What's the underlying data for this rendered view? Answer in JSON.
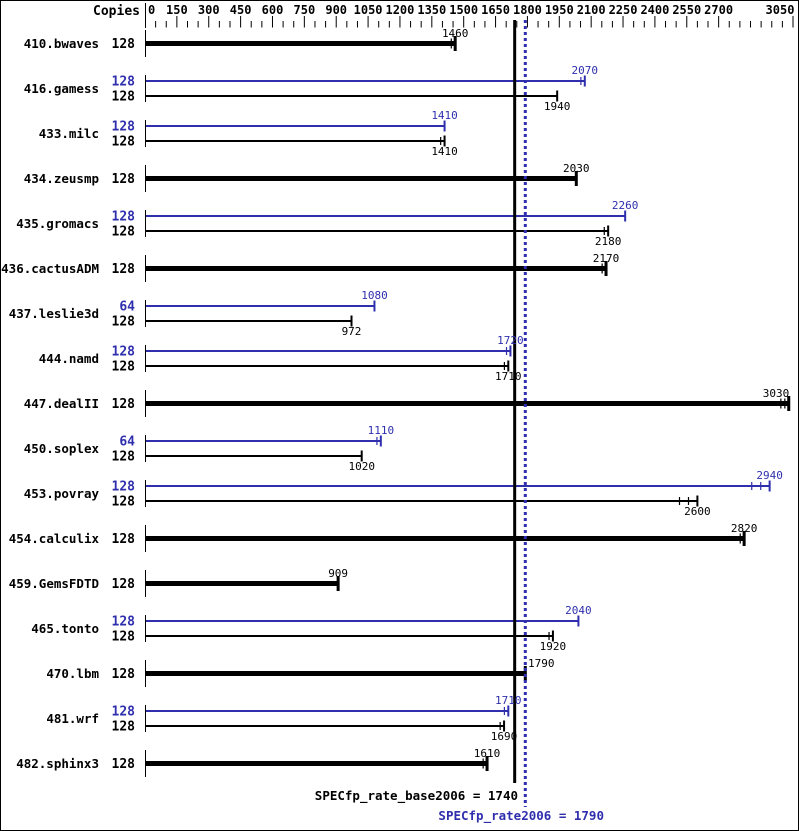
{
  "header": {
    "copies_label": "Copies"
  },
  "colors": {
    "base": "#000000",
    "peak": "#2f2fae",
    "background": "#ffffff",
    "border": "#000000"
  },
  "footer": {
    "base_text": "SPECfp_rate_base2006 = 1740",
    "peak_text": "SPECfp_rate2006 = 1790"
  },
  "chart_data": {
    "type": "bar",
    "orientation": "horizontal",
    "title": "",
    "xlabel": "",
    "ylabel": "Copies",
    "grid": false,
    "axis": {
      "min": 0,
      "max": 3050,
      "minor_step": 50,
      "major_step": 150,
      "labeled_ticks": [
        0,
        150,
        300,
        450,
        600,
        750,
        900,
        1050,
        1200,
        1350,
        1500,
        1650,
        1800,
        1950,
        2100,
        2250,
        2400,
        2550,
        2700,
        3050
      ]
    },
    "reference_lines": [
      {
        "name": "SPECfp_rate_base2006",
        "value": 1740,
        "style": "solid",
        "color_key": "base"
      },
      {
        "name": "SPECfp_rate2006",
        "value": 1790,
        "style": "dotted",
        "color_key": "peak"
      }
    ],
    "benchmarks": [
      {
        "name": "410.bwaves",
        "bars": [
          {
            "mode": "base",
            "copies": "128",
            "value": 1460,
            "runs_ticks": 1
          }
        ]
      },
      {
        "name": "416.gamess",
        "bars": [
          {
            "mode": "peak",
            "copies": "128",
            "value": 2070,
            "runs_ticks": 1
          },
          {
            "mode": "base",
            "copies": "128",
            "value": 1940,
            "runs_ticks": 0
          }
        ]
      },
      {
        "name": "433.milc",
        "bars": [
          {
            "mode": "peak",
            "copies": "128",
            "value": 1410,
            "runs_ticks": 0
          },
          {
            "mode": "base",
            "copies": "128",
            "value": 1410,
            "runs_ticks": 1
          }
        ]
      },
      {
        "name": "434.zeusmp",
        "bars": [
          {
            "mode": "base",
            "copies": "128",
            "value": 2030,
            "runs_ticks": 0
          }
        ]
      },
      {
        "name": "435.gromacs",
        "bars": [
          {
            "mode": "peak",
            "copies": "128",
            "value": 2260,
            "runs_ticks": 0
          },
          {
            "mode": "base",
            "copies": "128",
            "value": 2180,
            "runs_ticks": 1
          }
        ]
      },
      {
        "name": "436.cactusADM",
        "bars": [
          {
            "mode": "base",
            "copies": "128",
            "value": 2170,
            "runs_ticks": 1
          }
        ]
      },
      {
        "name": "437.leslie3d",
        "bars": [
          {
            "mode": "peak",
            "copies": "64",
            "value": 1080,
            "runs_ticks": 0
          },
          {
            "mode": "base",
            "copies": "128",
            "value": 972,
            "runs_ticks": 0
          }
        ]
      },
      {
        "name": "444.namd",
        "bars": [
          {
            "mode": "peak",
            "copies": "128",
            "value": 1720,
            "runs_ticks": 1
          },
          {
            "mode": "base",
            "copies": "128",
            "value": 1710,
            "runs_ticks": 1
          }
        ]
      },
      {
        "name": "447.dealII",
        "bars": [
          {
            "mode": "base",
            "copies": "128",
            "value": 3030,
            "runs_ticks": 2
          }
        ]
      },
      {
        "name": "450.soplex",
        "bars": [
          {
            "mode": "peak",
            "copies": "64",
            "value": 1110,
            "runs_ticks": 1
          },
          {
            "mode": "base",
            "copies": "128",
            "value": 1020,
            "runs_ticks": 0
          }
        ]
      },
      {
        "name": "453.povray",
        "bars": [
          {
            "mode": "peak",
            "copies": "128",
            "value": 2940,
            "runs_ticks": 2,
            "tick_spacing": 9
          },
          {
            "mode": "base",
            "copies": "128",
            "value": 2600,
            "runs_ticks": 2,
            "tick_spacing": 9
          }
        ]
      },
      {
        "name": "454.calculix",
        "bars": [
          {
            "mode": "base",
            "copies": "128",
            "value": 2820,
            "runs_ticks": 1
          }
        ]
      },
      {
        "name": "459.GemsFDTD",
        "bars": [
          {
            "mode": "base",
            "copies": "128",
            "value": 909,
            "runs_ticks": 0
          }
        ]
      },
      {
        "name": "465.tonto",
        "bars": [
          {
            "mode": "peak",
            "copies": "128",
            "value": 2040,
            "runs_ticks": 0
          },
          {
            "mode": "base",
            "copies": "128",
            "value": 1920,
            "runs_ticks": 1
          }
        ]
      },
      {
        "name": "470.lbm",
        "bars": [
          {
            "mode": "base",
            "copies": "128",
            "value": 1790,
            "runs_ticks": 0,
            "label_dx": 16
          }
        ]
      },
      {
        "name": "481.wrf",
        "bars": [
          {
            "mode": "peak",
            "copies": "128",
            "value": 1710,
            "runs_ticks": 1
          },
          {
            "mode": "base",
            "copies": "128",
            "value": 1690,
            "runs_ticks": 1
          }
        ]
      },
      {
        "name": "482.sphinx3",
        "bars": [
          {
            "mode": "base",
            "copies": "128",
            "value": 1610,
            "runs_ticks": 1
          }
        ]
      }
    ]
  }
}
